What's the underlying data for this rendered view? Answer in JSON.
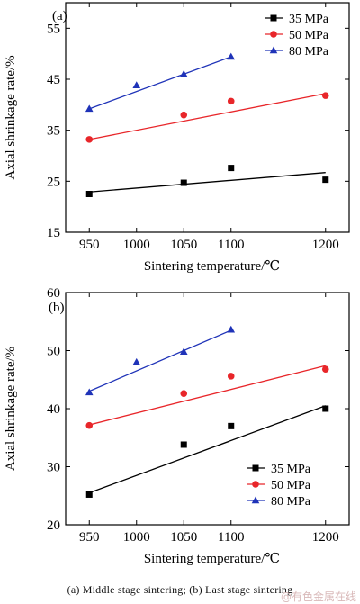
{
  "chart_data": [
    {
      "type": "scatter",
      "panel_label": "(a)",
      "xlabel": "Sintering temperature/℃",
      "ylabel": "Axial shrinkage rate/%",
      "xlim": [
        925,
        1225
      ],
      "ylim": [
        15,
        60
      ],
      "xticks": [
        950,
        1000,
        1050,
        1100,
        1200
      ],
      "yticks": [
        15,
        25,
        35,
        45,
        55
      ],
      "legend_position": "top-right",
      "series": [
        {
          "name": "35 MPa",
          "color": "#000000",
          "marker": "square",
          "points": [
            [
              950,
              22.5
            ],
            [
              1050,
              24.7
            ],
            [
              1100,
              27.6
            ],
            [
              1200,
              25.3
            ]
          ],
          "fit": [
            [
              950,
              22.9
            ],
            [
              1200,
              26.7
            ]
          ]
        },
        {
          "name": "50 MPa",
          "color": "#e8262a",
          "marker": "circle",
          "points": [
            [
              950,
              33.2
            ],
            [
              1050,
              38.0
            ],
            [
              1100,
              40.7
            ],
            [
              1200,
              41.8
            ]
          ],
          "fit": [
            [
              950,
              33.2
            ],
            [
              1200,
              42.2
            ]
          ]
        },
        {
          "name": "80 MPa",
          "color": "#1f33b8",
          "marker": "triangle",
          "points": [
            [
              950,
              39.2
            ],
            [
              1000,
              43.8
            ],
            [
              1050,
              46.0
            ],
            [
              1100,
              49.4
            ]
          ],
          "fit": [
            [
              950,
              39.2
            ],
            [
              1100,
              49.4
            ]
          ]
        }
      ]
    },
    {
      "type": "scatter",
      "panel_label": "(b)",
      "xlabel": "Sintering temperature/℃",
      "ylabel": "Axial shrinkage rate/%",
      "xlim": [
        925,
        1225
      ],
      "ylim": [
        20,
        60
      ],
      "xticks": [
        950,
        1000,
        1050,
        1100,
        1200
      ],
      "yticks": [
        20,
        30,
        40,
        50,
        60
      ],
      "legend_position": "bottom-right",
      "series": [
        {
          "name": "35 MPa",
          "color": "#000000",
          "marker": "square",
          "points": [
            [
              950,
              25.2
            ],
            [
              1050,
              33.8
            ],
            [
              1100,
              37.0
            ],
            [
              1200,
              40.0
            ]
          ],
          "fit": [
            [
              950,
              25.5
            ],
            [
              1200,
              40.5
            ]
          ]
        },
        {
          "name": "50 MPa",
          "color": "#e8262a",
          "marker": "circle",
          "points": [
            [
              950,
              37.1
            ],
            [
              1050,
              42.6
            ],
            [
              1100,
              45.6
            ],
            [
              1200,
              46.8
            ]
          ],
          "fit": [
            [
              950,
              37.2
            ],
            [
              1200,
              47.4
            ]
          ]
        },
        {
          "name": "80 MPa",
          "color": "#1f33b8",
          "marker": "triangle",
          "points": [
            [
              950,
              42.8
            ],
            [
              1000,
              48.0
            ],
            [
              1050,
              49.8
            ],
            [
              1100,
              53.6
            ]
          ],
          "fit": [
            [
              950,
              43.0
            ],
            [
              1100,
              53.5
            ]
          ]
        }
      ]
    }
  ],
  "caption": "(a)  Middle  stage  sintering;  (b)  Last  stage  sintering",
  "watermark": "@有色金属在线"
}
